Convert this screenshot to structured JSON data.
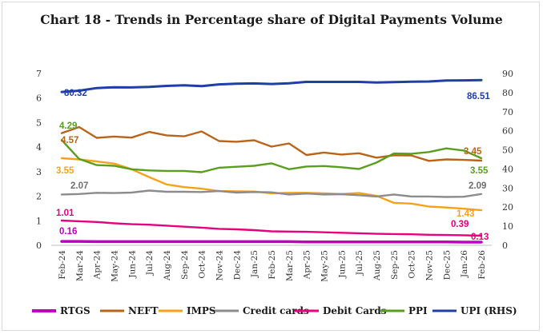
{
  "chart_data": {
    "type": "line",
    "title": "Chart 18 - Trends in Percentage share of Digital Payments Volume",
    "x": [
      "Feb-24",
      "Mar-24",
      "Apr-24",
      "May-24",
      "Jun-24",
      "Jul-24",
      "Aug-24",
      "Sep-24",
      "Oct-24",
      "Nov-24",
      "Dec-24",
      "Jan-25",
      "Feb-25",
      "Mar-25",
      "Apr-25",
      "May-25",
      "Jun-25",
      "Jul-25",
      "Aug-25",
      "Sep-25",
      "Oct-25",
      "Nov-25",
      "Dec-25",
      "Jan-26",
      "Feb-26"
    ],
    "y_left_ticks": [
      "0",
      "1",
      "2",
      "3",
      "4",
      "5",
      "6",
      "7"
    ],
    "y_right_ticks": [
      "0",
      "10",
      "20",
      "30",
      "40",
      "50",
      "60",
      "70",
      "80",
      "90"
    ],
    "ylim_left": [
      0,
      7
    ],
    "ylim_right": [
      0,
      90
    ],
    "grid": false,
    "legend_position": "bottom",
    "series": [
      {
        "name": "RTGS",
        "axis": "left",
        "color": "#c000c0",
        "values": [
          0.16,
          0.16,
          0.15,
          0.15,
          0.15,
          0.15,
          0.15,
          0.15,
          0.15,
          0.15,
          0.15,
          0.15,
          0.15,
          0.15,
          0.14,
          0.14,
          0.14,
          0.14,
          0.14,
          0.14,
          0.14,
          0.14,
          0.14,
          0.13,
          0.13
        ]
      },
      {
        "name": "NEFT",
        "axis": "left",
        "color": "#b8651b",
        "values": [
          4.57,
          4.82,
          4.38,
          4.43,
          4.39,
          4.62,
          4.48,
          4.44,
          4.64,
          4.25,
          4.22,
          4.28,
          4.02,
          4.15,
          3.68,
          3.78,
          3.7,
          3.75,
          3.57,
          3.67,
          3.66,
          3.44,
          3.5,
          3.48,
          3.45
        ]
      },
      {
        "name": "IMPS",
        "axis": "left",
        "color": "#f5a21a",
        "values": [
          3.55,
          3.5,
          3.42,
          3.33,
          3.1,
          2.78,
          2.48,
          2.37,
          2.31,
          2.21,
          2.2,
          2.19,
          2.12,
          2.14,
          2.14,
          2.12,
          2.09,
          2.13,
          2.02,
          1.73,
          1.7,
          1.58,
          1.54,
          1.49,
          1.43
        ]
      },
      {
        "name": "Credit cards",
        "axis": "left",
        "color": "#8c8c8c",
        "values": [
          2.07,
          2.09,
          2.14,
          2.13,
          2.15,
          2.23,
          2.18,
          2.18,
          2.17,
          2.21,
          2.15,
          2.17,
          2.16,
          2.07,
          2.11,
          2.07,
          2.08,
          2.04,
          1.99,
          2.07,
          1.99,
          1.99,
          1.97,
          1.98,
          2.09
        ]
      },
      {
        "name": "Debit Cards",
        "axis": "left",
        "color": "#e6007e",
        "values": [
          1.01,
          0.98,
          0.95,
          0.9,
          0.86,
          0.84,
          0.8,
          0.76,
          0.72,
          0.67,
          0.65,
          0.62,
          0.57,
          0.56,
          0.55,
          0.53,
          0.51,
          0.49,
          0.47,
          0.46,
          0.45,
          0.43,
          0.42,
          0.41,
          0.39
        ]
      },
      {
        "name": "PPI",
        "axis": "left",
        "color": "#5a9e1f",
        "values": [
          4.29,
          3.52,
          3.27,
          3.24,
          3.1,
          3.05,
          3.03,
          3.03,
          2.98,
          3.16,
          3.2,
          3.24,
          3.34,
          3.1,
          3.21,
          3.23,
          3.18,
          3.11,
          3.37,
          3.74,
          3.73,
          3.8,
          3.95,
          3.86,
          3.55
        ]
      },
      {
        "name": "UPI (RHS)",
        "axis": "right",
        "color": "#1f3fa6",
        "values": [
          80.32,
          81.0,
          82.4,
          82.8,
          82.7,
          83.0,
          83.5,
          83.8,
          83.4,
          84.3,
          84.7,
          84.8,
          84.5,
          84.9,
          85.6,
          85.6,
          85.6,
          85.6,
          85.3,
          85.5,
          85.7,
          85.8,
          86.3,
          86.4,
          86.51
        ]
      }
    ],
    "data_labels": [
      {
        "text": "80.32",
        "color": "#1f3fa6"
      },
      {
        "text": "86.51",
        "color": "#1f3fa6"
      },
      {
        "text": "4.29",
        "color": "#5a9e1f"
      },
      {
        "text": "4.57",
        "color": "#b8651b"
      },
      {
        "text": "3.45",
        "color": "#b8651b"
      },
      {
        "text": "3.55",
        "color": "#f5a21a"
      },
      {
        "text": "3.55",
        "color": "#5a9e1f"
      },
      {
        "text": "2.07",
        "color": "#6e6e6e"
      },
      {
        "text": "2.09",
        "color": "#6e6e6e"
      },
      {
        "text": "1.01",
        "color": "#e6007e"
      },
      {
        "text": "1.43",
        "color": "#f5a21a"
      },
      {
        "text": "0.39",
        "color": "#e6007e"
      },
      {
        "text": "0.16",
        "color": "#c000c0"
      },
      {
        "text": "0.13",
        "color": "#e6007e"
      }
    ]
  }
}
